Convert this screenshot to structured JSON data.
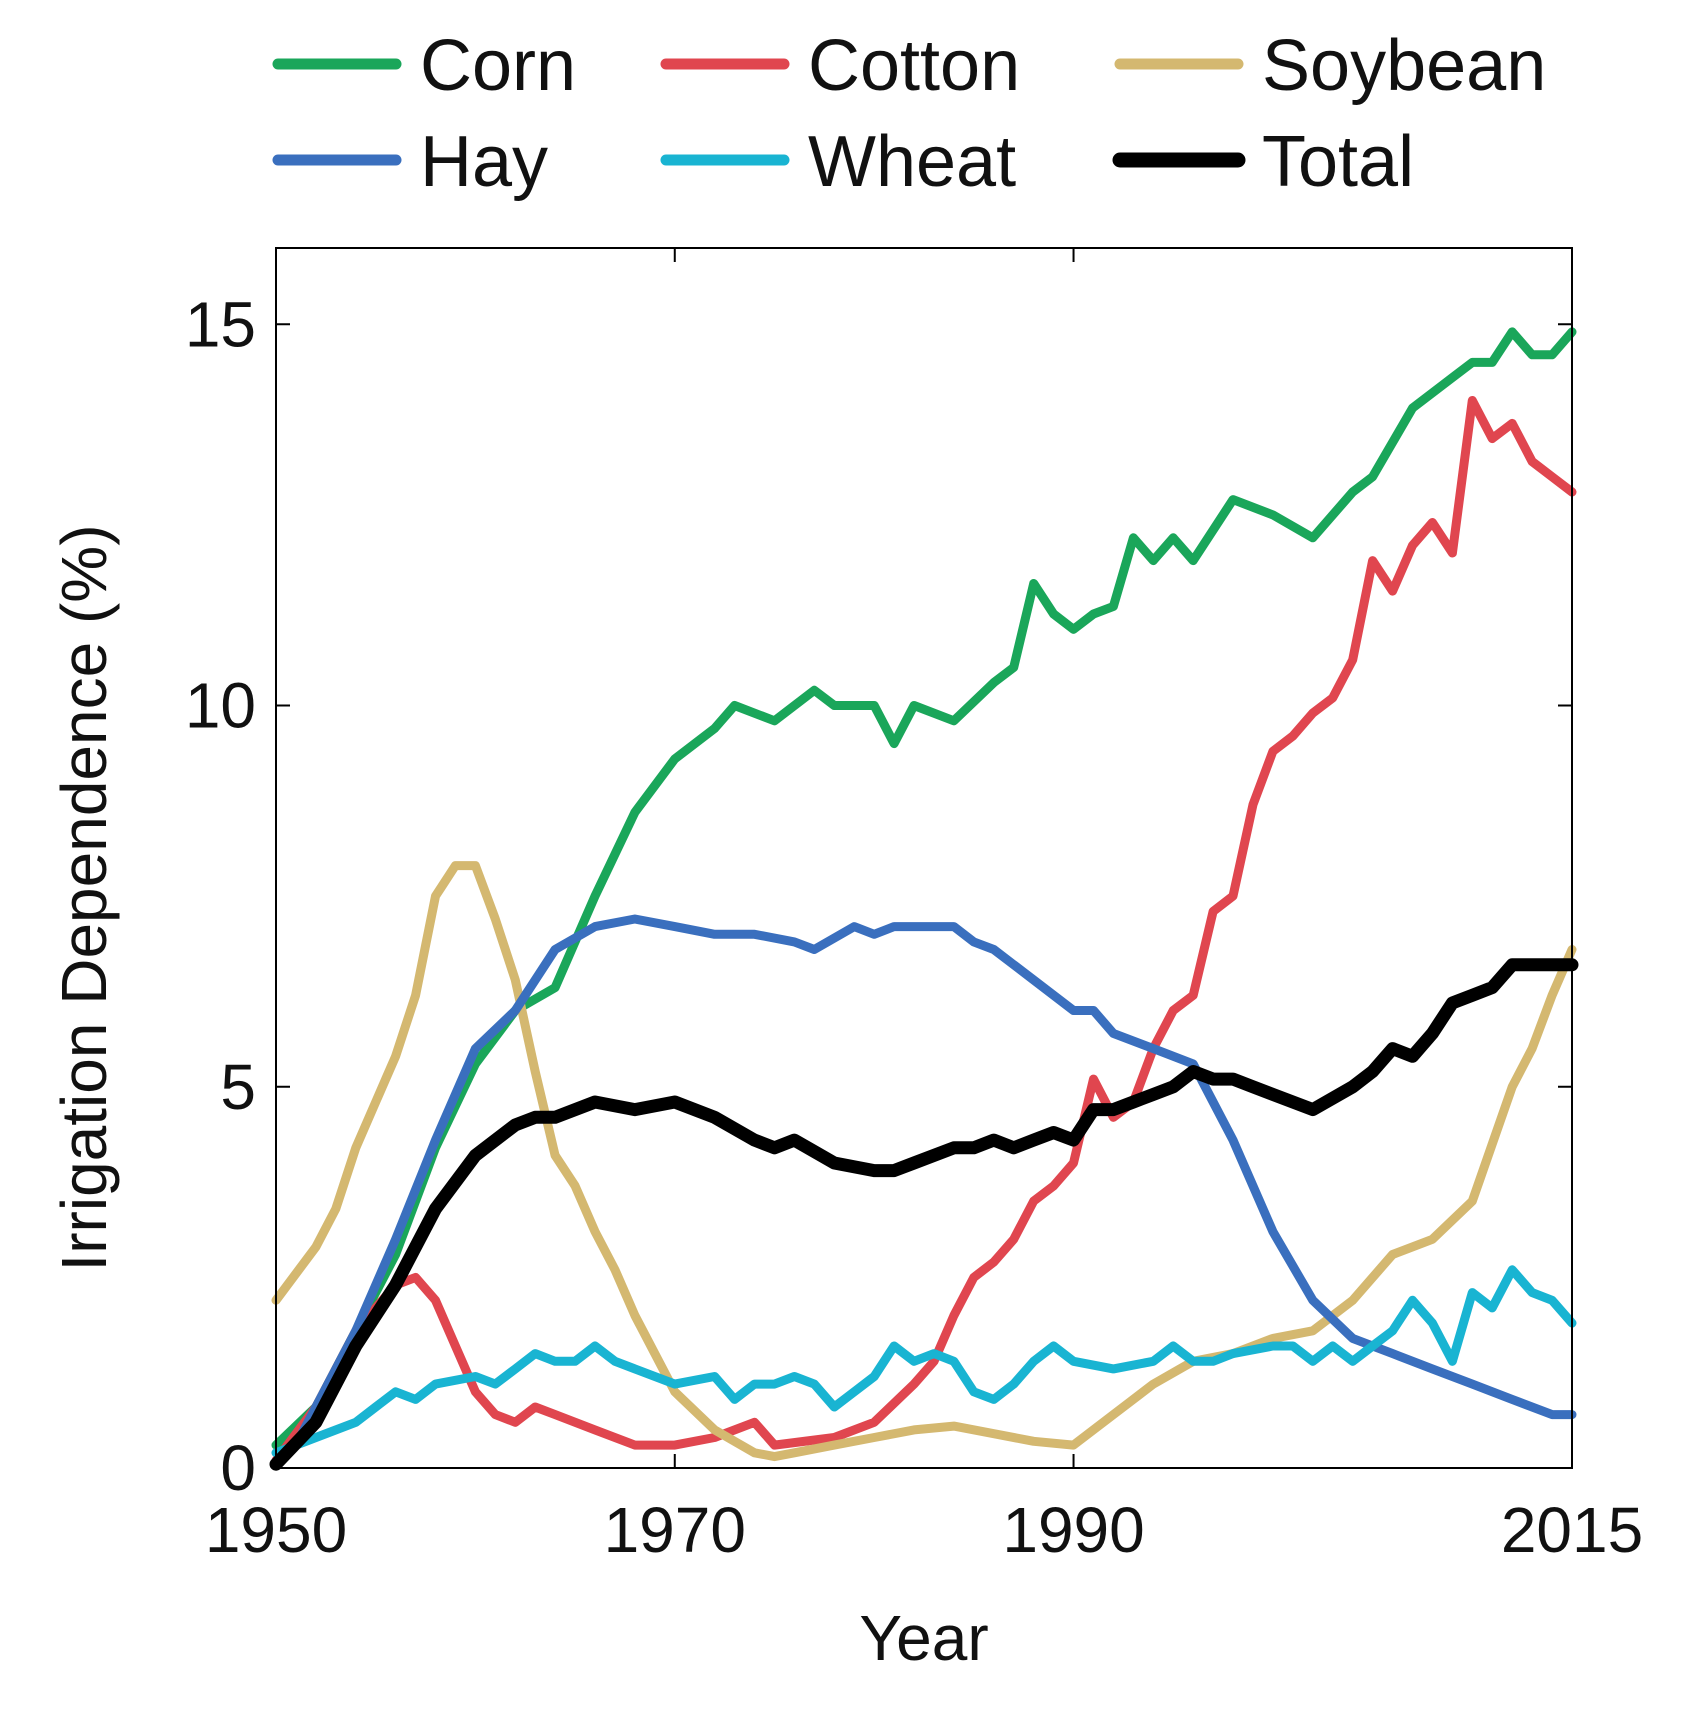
{
  "chart_data": {
    "type": "line",
    "title": "",
    "xlabel": "Year",
    "ylabel": "Irrigation Dependence (%)",
    "xlim": [
      1950,
      2015
    ],
    "ylim": [
      0,
      16
    ],
    "x_ticks": [
      1950,
      1970,
      1990,
      2015
    ],
    "y_ticks": [
      0,
      5,
      10,
      15
    ],
    "legend_position": "top",
    "series": [
      {
        "name": "Corn",
        "color": "#1aa65a",
        "x": [
          1950,
          1952,
          1954,
          1956,
          1958,
          1960,
          1962,
          1964,
          1966,
          1968,
          1970,
          1972,
          1973,
          1975,
          1977,
          1978,
          1980,
          1981,
          1982,
          1984,
          1986,
          1987,
          1988,
          1989,
          1990,
          1991,
          1992,
          1993,
          1994,
          1995,
          1996,
          1998,
          2000,
          2002,
          2004,
          2005,
          2007,
          2009,
          2010,
          2011,
          2012,
          2013,
          2014,
          2015
        ],
        "y": [
          0.3,
          0.8,
          1.8,
          2.8,
          4.2,
          5.3,
          6.0,
          6.3,
          7.5,
          8.6,
          9.3,
          9.7,
          10.0,
          9.8,
          10.2,
          10.0,
          10.0,
          9.5,
          10.0,
          9.8,
          10.3,
          10.5,
          11.6,
          11.2,
          11.0,
          11.2,
          11.3,
          12.2,
          11.9,
          12.2,
          11.9,
          12.7,
          12.5,
          12.2,
          12.8,
          13.0,
          13.9,
          14.3,
          14.5,
          14.5,
          14.9,
          14.6,
          14.6,
          14.9
        ]
      },
      {
        "name": "Cotton",
        "color": "#e0464f",
        "x": [
          1950,
          1952,
          1954,
          1956,
          1957,
          1958,
          1959,
          1960,
          1961,
          1962,
          1963,
          1964,
          1966,
          1968,
          1970,
          1972,
          1974,
          1975,
          1978,
          1980,
          1982,
          1983,
          1984,
          1985,
          1986,
          1987,
          1988,
          1989,
          1990,
          1991,
          1992,
          1993,
          1994,
          1995,
          1996,
          1997,
          1998,
          1999,
          2000,
          2001,
          2002,
          2003,
          2004,
          2005,
          2006,
          2007,
          2008,
          2009,
          2010,
          2011,
          2012,
          2013,
          2014,
          2015
        ],
        "y": [
          0.1,
          0.8,
          1.8,
          2.4,
          2.5,
          2.2,
          1.6,
          1.0,
          0.7,
          0.6,
          0.8,
          0.7,
          0.5,
          0.3,
          0.3,
          0.4,
          0.6,
          0.3,
          0.4,
          0.6,
          1.1,
          1.4,
          2.0,
          2.5,
          2.7,
          3.0,
          3.5,
          3.7,
          4.0,
          5.1,
          4.6,
          4.8,
          5.5,
          6.0,
          6.2,
          7.3,
          7.5,
          8.7,
          9.4,
          9.6,
          9.9,
          10.1,
          10.6,
          11.9,
          11.5,
          12.1,
          12.4,
          12.0,
          14.0,
          13.5,
          13.7,
          13.2,
          13.0,
          12.8
        ]
      },
      {
        "name": "Soybean",
        "color": "#d4b870",
        "x": [
          1950,
          1952,
          1953,
          1954,
          1955,
          1956,
          1957,
          1958,
          1959,
          1960,
          1961,
          1962,
          1963,
          1964,
          1965,
          1966,
          1967,
          1968,
          1969,
          1970,
          1972,
          1974,
          1975,
          1976,
          1978,
          1980,
          1982,
          1984,
          1986,
          1988,
          1990,
          1992,
          1994,
          1996,
          1998,
          2000,
          2002,
          2004,
          2006,
          2008,
          2010,
          2012,
          2013,
          2014,
          2015
        ],
        "y": [
          2.2,
          2.9,
          3.4,
          4.2,
          4.8,
          5.4,
          6.2,
          7.5,
          7.9,
          7.9,
          7.2,
          6.4,
          5.2,
          4.1,
          3.7,
          3.1,
          2.6,
          2.0,
          1.5,
          1.0,
          0.5,
          0.2,
          0.15,
          0.2,
          0.3,
          0.4,
          0.5,
          0.55,
          0.45,
          0.35,
          0.3,
          0.7,
          1.1,
          1.4,
          1.5,
          1.7,
          1.8,
          2.2,
          2.8,
          3.0,
          3.5,
          5.0,
          5.5,
          6.2,
          6.8
        ]
      },
      {
        "name": "Hay",
        "color": "#3a6fbe",
        "x": [
          1950,
          1951,
          1952,
          1954,
          1956,
          1958,
          1960,
          1962,
          1964,
          1966,
          1968,
          1970,
          1972,
          1974,
          1976,
          1977,
          1979,
          1980,
          1981,
          1982,
          1984,
          1985,
          1986,
          1988,
          1990,
          1991,
          1992,
          1994,
          1996,
          1997,
          1998,
          2000,
          2002,
          2004,
          2006,
          2008,
          2010,
          2012,
          2014,
          2015
        ],
        "y": [
          0.05,
          0.3,
          0.8,
          1.8,
          3.0,
          4.3,
          5.5,
          6.0,
          6.8,
          7.1,
          7.2,
          7.1,
          7.0,
          7.0,
          6.9,
          6.8,
          7.1,
          7.0,
          7.1,
          7.1,
          7.1,
          6.9,
          6.8,
          6.4,
          6.0,
          6.0,
          5.7,
          5.5,
          5.3,
          4.8,
          4.3,
          3.1,
          2.2,
          1.7,
          1.5,
          1.3,
          1.1,
          0.9,
          0.7,
          0.7
        ]
      },
      {
        "name": "Wheat",
        "color": "#19b4d2",
        "x": [
          1950,
          1952,
          1954,
          1955,
          1956,
          1957,
          1958,
          1960,
          1961,
          1962,
          1963,
          1964,
          1965,
          1966,
          1967,
          1968,
          1970,
          1972,
          1973,
          1974,
          1975,
          1976,
          1977,
          1978,
          1979,
          1980,
          1981,
          1982,
          1983,
          1984,
          1985,
          1986,
          1987,
          1988,
          1989,
          1990,
          1992,
          1994,
          1995,
          1996,
          1997,
          1998,
          2000,
          2001,
          2002,
          2003,
          2004,
          2005,
          2006,
          2007,
          2008,
          2009,
          2010,
          2011,
          2012,
          2013,
          2014,
          2015
        ],
        "y": [
          0.2,
          0.4,
          0.6,
          0.8,
          1.0,
          0.9,
          1.1,
          1.2,
          1.1,
          1.3,
          1.5,
          1.4,
          1.4,
          1.6,
          1.4,
          1.3,
          1.1,
          1.2,
          0.9,
          1.1,
          1.1,
          1.2,
          1.1,
          0.8,
          1.0,
          1.2,
          1.6,
          1.4,
          1.5,
          1.4,
          1.0,
          0.9,
          1.1,
          1.4,
          1.6,
          1.4,
          1.3,
          1.4,
          1.6,
          1.4,
          1.4,
          1.5,
          1.6,
          1.6,
          1.4,
          1.6,
          1.4,
          1.6,
          1.8,
          2.2,
          1.9,
          1.4,
          2.3,
          2.1,
          2.6,
          2.3,
          2.2,
          1.9
        ]
      },
      {
        "name": "Total",
        "color": "#000000",
        "x": [
          1950,
          1952,
          1954,
          1955,
          1956,
          1958,
          1960,
          1962,
          1963,
          1964,
          1966,
          1968,
          1970,
          1972,
          1974,
          1975,
          1976,
          1978,
          1980,
          1981,
          1982,
          1984,
          1985,
          1986,
          1987,
          1988,
          1989,
          1990,
          1991,
          1992,
          1993,
          1994,
          1995,
          1996,
          1997,
          1998,
          1999,
          2000,
          2002,
          2004,
          2005,
          2006,
          2007,
          2008,
          2009,
          2010,
          2011,
          2012,
          2013,
          2014,
          2015
        ],
        "y": [
          0.05,
          0.6,
          1.6,
          2.0,
          2.4,
          3.4,
          4.1,
          4.5,
          4.6,
          4.6,
          4.8,
          4.7,
          4.8,
          4.6,
          4.3,
          4.2,
          4.3,
          4.0,
          3.9,
          3.9,
          4.0,
          4.2,
          4.2,
          4.3,
          4.2,
          4.3,
          4.4,
          4.3,
          4.7,
          4.7,
          4.8,
          4.9,
          5.0,
          5.2,
          5.1,
          5.1,
          5.0,
          4.9,
          4.7,
          5.0,
          5.2,
          5.5,
          5.4,
          5.7,
          6.1,
          6.2,
          6.3,
          6.6,
          6.6,
          6.6,
          6.6
        ]
      }
    ]
  }
}
